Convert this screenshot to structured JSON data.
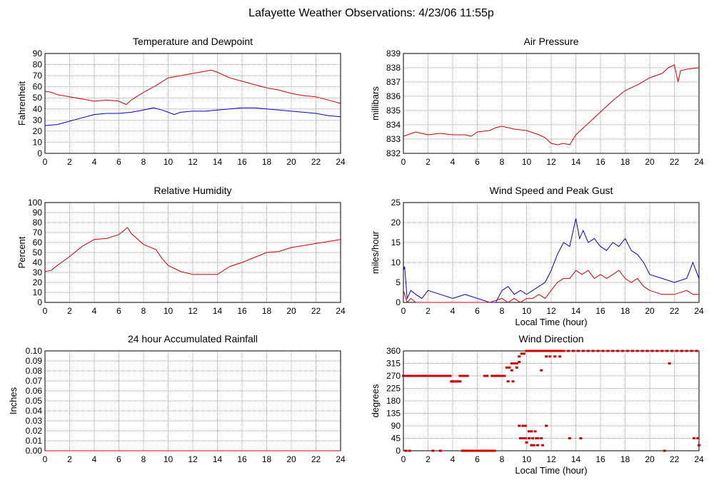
{
  "page_title": "Lafayette Weather Observations: 4/23/06 11:55p",
  "chart_data": [
    {
      "id": "temp",
      "type": "line",
      "title": "Temperature and Dewpoint",
      "xlabel": "",
      "ylabel": "Fahrenheit",
      "xlim": [
        0,
        24
      ],
      "ylim": [
        0,
        90
      ],
      "xticks": [
        0,
        2,
        4,
        6,
        8,
        10,
        12,
        14,
        16,
        18,
        20,
        22,
        24
      ],
      "yticks": [
        0,
        10,
        20,
        30,
        40,
        50,
        60,
        70,
        80,
        90
      ],
      "grid": true,
      "series": [
        {
          "color": "#cc0000",
          "x": [
            0,
            0.5,
            1,
            2,
            3,
            4,
            5,
            6,
            6.6,
            7,
            8,
            9,
            10,
            11,
            12,
            13,
            13.5,
            14,
            15,
            16,
            17,
            18,
            19,
            20,
            21,
            22,
            23,
            24
          ],
          "y": [
            56,
            55,
            53,
            51,
            49,
            47,
            48,
            47,
            44,
            48,
            55,
            61,
            68,
            70,
            72,
            74,
            75,
            73,
            68,
            65,
            62,
            59,
            57,
            54,
            52,
            51,
            48,
            45
          ]
        },
        {
          "color": "#0000cc",
          "x": [
            0,
            1,
            2,
            3,
            4,
            5,
            6,
            7,
            8,
            8.8,
            9.5,
            10,
            10.5,
            11,
            12,
            13,
            14,
            15,
            16,
            17,
            18,
            19,
            20,
            21,
            22,
            23,
            24
          ],
          "y": [
            25,
            26,
            29,
            32,
            35,
            36,
            36,
            37,
            39,
            41,
            39,
            37,
            35,
            37,
            38,
            38,
            39,
            40,
            41,
            41,
            40,
            39,
            38,
            37,
            36,
            34,
            33
          ]
        }
      ]
    },
    {
      "id": "pressure",
      "type": "line",
      "title": "Air Pressure",
      "xlabel": "",
      "ylabel": "millibars",
      "xlim": [
        0,
        24
      ],
      "ylim": [
        832,
        839
      ],
      "xticks": [
        0,
        2,
        4,
        6,
        8,
        10,
        12,
        14,
        16,
        18,
        20,
        22,
        24
      ],
      "yticks": [
        832,
        833,
        834,
        835,
        836,
        837,
        838,
        839
      ],
      "grid": true,
      "series": [
        {
          "color": "#cc0000",
          "x": [
            0,
            1,
            2,
            3,
            4,
            5,
            5.5,
            6,
            7,
            7.5,
            8,
            9,
            10,
            11,
            11.5,
            12,
            12.5,
            13,
            13.5,
            14,
            15,
            16,
            17,
            18,
            19,
            20,
            21,
            21.5,
            22,
            22.3,
            22.5,
            23,
            24
          ],
          "y": [
            833.2,
            833.5,
            833.3,
            833.4,
            833.3,
            833.3,
            833.2,
            833.5,
            833.6,
            833.8,
            833.9,
            833.7,
            833.6,
            833.3,
            833.1,
            832.7,
            832.6,
            832.7,
            832.6,
            833.3,
            834.1,
            834.9,
            835.7,
            836.4,
            836.8,
            837.3,
            837.6,
            838.0,
            838.2,
            837.0,
            837.8,
            837.9,
            838.0
          ]
        }
      ]
    },
    {
      "id": "humidity",
      "type": "line",
      "title": "Relative Humidity",
      "xlabel": "",
      "ylabel": "Percent",
      "xlim": [
        0,
        24
      ],
      "ylim": [
        0,
        100
      ],
      "xticks": [
        0,
        2,
        4,
        6,
        8,
        10,
        12,
        14,
        16,
        18,
        20,
        22,
        24
      ],
      "yticks": [
        0,
        10,
        20,
        30,
        40,
        50,
        60,
        70,
        80,
        90,
        100
      ],
      "grid": true,
      "series": [
        {
          "color": "#cc0000",
          "x": [
            0,
            0.5,
            1,
            2,
            3,
            4,
            5,
            6,
            6.7,
            7,
            8,
            9,
            9.5,
            10,
            11,
            12,
            13,
            14,
            15,
            16,
            17,
            18,
            19,
            20,
            21,
            22,
            23,
            24
          ],
          "y": [
            31,
            32,
            37,
            46,
            56,
            63,
            64,
            68,
            75,
            69,
            58,
            53,
            44,
            37,
            31,
            28,
            28,
            28,
            36,
            40,
            45,
            50,
            51,
            55,
            57,
            59,
            61,
            63
          ]
        }
      ]
    },
    {
      "id": "wind",
      "type": "line",
      "title": "Wind Speed and Peak Gust",
      "xlabel": "Local Time (hour)",
      "ylabel": "miles/hour",
      "xlim": [
        0,
        24
      ],
      "ylim": [
        0,
        25
      ],
      "xticks": [
        0,
        2,
        4,
        6,
        8,
        10,
        12,
        14,
        16,
        18,
        20,
        22,
        24
      ],
      "yticks": [
        0,
        5,
        10,
        15,
        20,
        25
      ],
      "grid": true,
      "series": [
        {
          "color": "#0000cc",
          "x": [
            0,
            0.1,
            0.3,
            0.6,
            1,
            1.5,
            2,
            3,
            4,
            5,
            6,
            7,
            7.5,
            8,
            8.5,
            9,
            9.5,
            10,
            10.5,
            11,
            11.5,
            12,
            12.5,
            13,
            13.5,
            14,
            14.3,
            14.6,
            15,
            15.5,
            16,
            16.5,
            17,
            17.5,
            18,
            18.5,
            19,
            19.5,
            20,
            21,
            22,
            23,
            23.5,
            24
          ],
          "y": [
            8,
            9,
            1,
            3,
            2,
            1,
            3,
            2,
            1,
            2,
            1,
            0,
            0,
            3,
            4,
            2,
            3,
            2,
            3,
            4,
            5,
            8,
            12,
            15,
            14,
            21,
            16,
            18,
            15,
            16,
            14,
            13,
            15,
            14,
            16,
            13,
            12,
            10,
            7,
            6,
            5,
            6,
            10,
            6
          ]
        },
        {
          "color": "#cc0000",
          "x": [
            0,
            0.1,
            0.3,
            0.6,
            1,
            2,
            3,
            4,
            5,
            6,
            7,
            8,
            8.5,
            9,
            9.5,
            10,
            10.5,
            11,
            11.5,
            12,
            12.5,
            13,
            13.5,
            14,
            14.5,
            15,
            15.5,
            16,
            16.5,
            17,
            17.5,
            18,
            18.5,
            19,
            19.5,
            20,
            21,
            22,
            23,
            23.5,
            24
          ],
          "y": [
            3,
            2,
            0,
            1,
            0,
            0,
            0,
            0,
            0,
            0,
            0,
            1,
            0,
            1,
            0,
            1,
            1,
            2,
            1,
            3,
            5,
            6,
            6,
            8,
            7,
            8,
            6,
            7,
            6,
            7,
            8,
            6,
            5,
            6,
            4,
            3,
            2,
            2,
            3,
            2,
            2
          ]
        }
      ]
    },
    {
      "id": "rain",
      "type": "line",
      "title": "24 hour Accumulated Rainfall",
      "xlabel": "",
      "ylabel": "Inches",
      "xlim": [
        0,
        24
      ],
      "ylim": [
        0,
        0.1
      ],
      "xticks": [
        0,
        2,
        4,
        6,
        8,
        10,
        12,
        14,
        16,
        18,
        20,
        22,
        24
      ],
      "yticks": [
        "0.00",
        "0.01",
        "0.02",
        "0.03",
        "0.04",
        "0.05",
        "0.06",
        "0.07",
        "0.08",
        "0.09",
        "0.10"
      ],
      "grid": true,
      "series": [
        {
          "color": "#cc0000",
          "x": [
            0,
            24
          ],
          "y": [
            0,
            0
          ]
        }
      ]
    },
    {
      "id": "winddir",
      "type": "scatter",
      "title": "Wind Direction",
      "xlabel": "Local Time (hour)",
      "ylabel": "degrees",
      "xlim": [
        0,
        24
      ],
      "ylim": [
        0,
        360
      ],
      "xticks": [
        0,
        2,
        4,
        6,
        8,
        10,
        12,
        14,
        16,
        18,
        20,
        22,
        24
      ],
      "yticks": [
        0,
        45,
        90,
        135,
        180,
        225,
        270,
        315,
        360
      ],
      "grid": true,
      "series": [
        {
          "color": "#cc0000",
          "x": [
            0.0,
            0.2,
            0.4,
            0.6,
            0.8,
            1.0,
            1.2,
            1.4,
            1.6,
            1.8,
            2.0,
            2.2,
            2.4,
            2.6,
            2.8,
            3.0,
            3.2,
            3.4,
            3.6,
            3.8,
            4.0,
            4.2,
            4.4,
            4.6,
            4.8,
            5.0,
            5.2,
            6.6,
            6.8,
            7.2,
            7.4,
            7.6,
            7.8,
            8.0,
            8.2,
            8.4,
            8.6,
            8.8,
            9.0,
            9.2,
            9.4,
            9.6,
            9.8,
            10.0,
            10.2,
            10.4,
            10.6,
            10.8,
            11.0,
            11.2,
            11.4,
            11.6,
            11.8,
            12.0,
            12.2,
            12.4,
            12.6,
            12.8,
            13.0,
            13.4,
            13.8,
            14.2,
            14.6,
            15.0,
            15.4,
            15.8,
            16.2,
            16.6,
            17.0,
            17.4,
            17.8,
            18.2,
            18.6,
            19.0,
            19.4,
            19.8,
            20.2,
            20.6,
            21.0,
            21.4,
            21.8,
            22.2,
            22.6,
            23.0,
            23.4,
            23.8,
            0.2,
            0.5,
            2.4,
            3.0,
            4.8,
            5.0,
            5.2,
            5.4,
            5.6,
            5.8,
            6.0,
            6.2,
            6.4,
            6.6,
            6.8,
            7.0,
            7.2,
            7.4,
            3.9,
            4.0,
            4.2,
            4.4,
            4.6,
            9.5,
            9.7,
            9.9,
            10.2,
            10.5,
            10.8,
            13.5,
            14.4,
            23.6,
            23.9,
            9.4,
            9.7,
            9.9,
            10.2,
            10.4,
            10.7,
            10.9,
            11.2,
            11.6,
            8.5,
            8.9,
            8.8,
            9.2,
            9.4,
            11.9,
            12.3,
            12.7,
            11.6,
            11.2,
            21.6,
            24.0,
            10.0,
            10.4,
            10.6,
            10.9,
            11.3,
            21.2
          ],
          "y": [
            270,
            270,
            270,
            270,
            270,
            270,
            270,
            270,
            270,
            270,
            270,
            270,
            270,
            270,
            270,
            270,
            270,
            270,
            270,
            270,
            250,
            250,
            250,
            270,
            270,
            270,
            270,
            270,
            270,
            270,
            270,
            270,
            270,
            270,
            270,
            300,
            300,
            315,
            315,
            315,
            340,
            350,
            350,
            360,
            360,
            360,
            360,
            360,
            360,
            360,
            360,
            360,
            360,
            360,
            360,
            360,
            360,
            360,
            360,
            360,
            360,
            360,
            360,
            360,
            360,
            360,
            360,
            360,
            360,
            360,
            360,
            360,
            360,
            360,
            360,
            360,
            360,
            360,
            360,
            360,
            360,
            360,
            360,
            360,
            360,
            360,
            0,
            0,
            0,
            0,
            0,
            0,
            0,
            0,
            0,
            0,
            0,
            0,
            0,
            0,
            0,
            0,
            0,
            0,
            250,
            250,
            250,
            250,
            250,
            45,
            45,
            45,
            45,
            45,
            45,
            45,
            45,
            45,
            45,
            90,
            90,
            90,
            70,
            70,
            70,
            45,
            45,
            90,
            250,
            250,
            290,
            300,
            320,
            340,
            340,
            340,
            340,
            290,
            315,
            20,
            30,
            20,
            20,
            20,
            20,
            0
          ]
        }
      ]
    }
  ]
}
